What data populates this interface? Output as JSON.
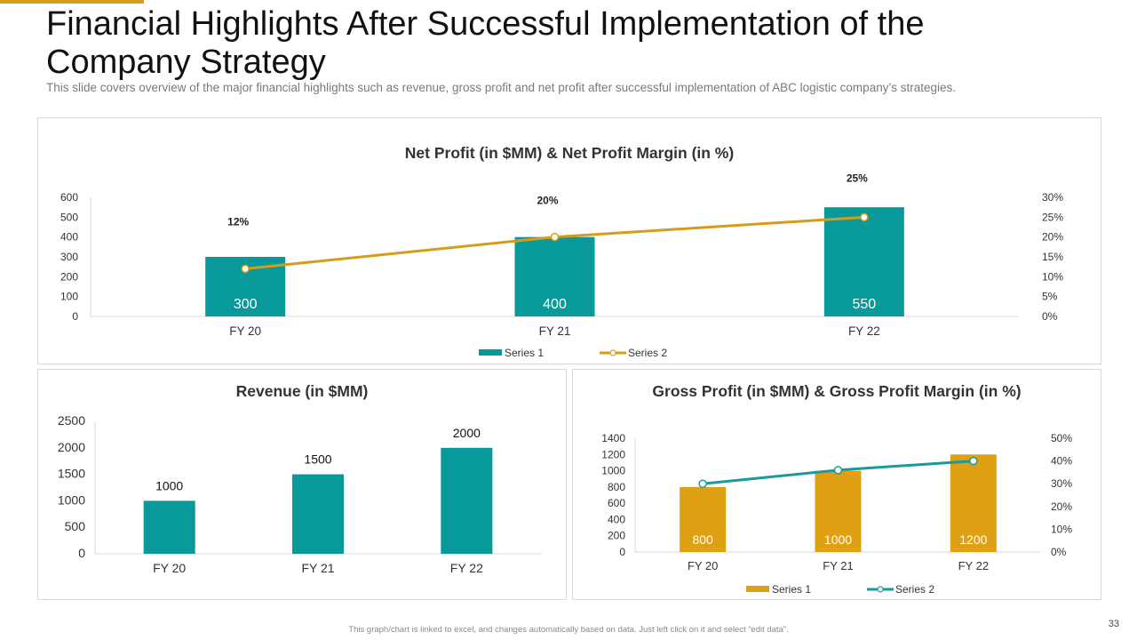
{
  "slide": {
    "title": "Financial Highlights After Successful Implementation of the Company Strategy",
    "subtitle": "This slide covers overview of the major financial highlights such as revenue, gross profit and net profit after successful implementation of ABC logistic company’s strategies.",
    "footer": "This graph/chart is linked to excel, and changes automatically based on data. Just left click on it and select “edit data”.",
    "page_number": "33",
    "colors": {
      "teal": "#08999a",
      "gold": "#e0a013",
      "line_gold": "#d79b1a",
      "line_teal": "#1a9a9c"
    }
  },
  "chart_data": [
    {
      "type": "bar",
      "title": "Net Profit (in $MM) & Net Profit Margin (in %)",
      "categories": [
        "FY 20",
        "FY 21",
        "FY 22"
      ],
      "ylim": [
        0,
        600
      ],
      "yticks": [
        "0",
        "100",
        "200",
        "300",
        "400",
        "500",
        "600"
      ],
      "y2lim": [
        0,
        30
      ],
      "y2ticks": [
        "0%",
        "5%",
        "10%",
        "15%",
        "20%",
        "25%",
        "30%"
      ],
      "series": [
        {
          "name": "Series 1",
          "type": "bar",
          "values": [
            300,
            400,
            550
          ],
          "labels": [
            "300",
            "400",
            "550"
          ]
        },
        {
          "name": "Series 2",
          "type": "line",
          "axis": "secondary",
          "values": [
            12,
            20,
            25
          ],
          "labels": [
            "12%",
            "20%",
            "25%"
          ]
        }
      ],
      "legend": "bottom",
      "grid": false
    },
    {
      "type": "bar",
      "title": "Revenue (in $MM)",
      "categories": [
        "FY 20",
        "FY 21",
        "FY 22"
      ],
      "ylim": [
        0,
        2500
      ],
      "yticks": [
        "0",
        "500",
        "1000",
        "1500",
        "2000",
        "2500"
      ],
      "series": [
        {
          "name": "",
          "type": "bar",
          "values": [
            1000,
            1500,
            2000
          ],
          "labels": [
            "1000",
            "1500",
            "2000"
          ]
        }
      ],
      "grid": false
    },
    {
      "type": "bar",
      "title": "Gross Profit (in $MM) & Gross Profit Margin (in %)",
      "categories": [
        "FY 20",
        "FY 21",
        "FY 22"
      ],
      "ylim": [
        0,
        1400
      ],
      "yticks": [
        "0",
        "200",
        "400",
        "600",
        "800",
        "1000",
        "1200",
        "1400"
      ],
      "y2lim": [
        0,
        50
      ],
      "y2ticks": [
        "0%",
        "10%",
        "20%",
        "30%",
        "40%",
        "50%"
      ],
      "series": [
        {
          "name": "Series 1",
          "type": "bar",
          "values": [
            800,
            1000,
            1200
          ],
          "labels": [
            "800",
            "1000",
            "1200"
          ]
        },
        {
          "name": "Series 2",
          "type": "line",
          "axis": "secondary",
          "values": [
            30,
            36,
            40
          ]
        }
      ],
      "legend": "bottom",
      "grid": false
    }
  ]
}
